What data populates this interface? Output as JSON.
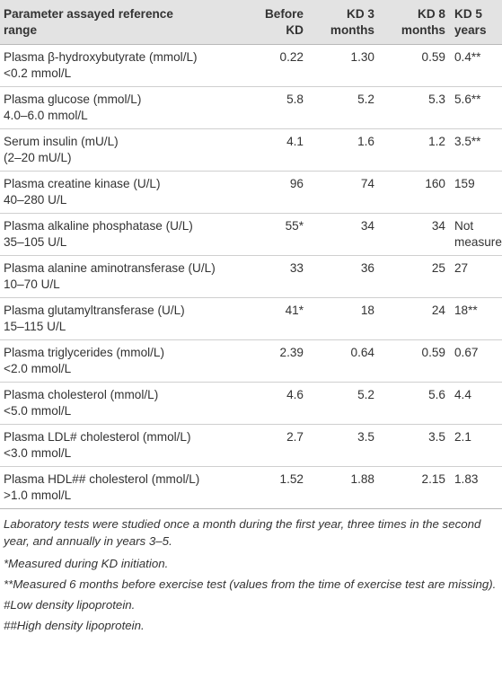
{
  "columns": [
    "Parameter assayed reference range",
    "Before KD",
    "KD 3 months",
    "KD 8 months",
    "KD 5 years"
  ],
  "header": {
    "param": [
      "Parameter assayed reference",
      "range"
    ],
    "before": [
      "Before",
      "KD"
    ],
    "kd3": [
      "KD 3",
      "months"
    ],
    "kd8": [
      "KD 8",
      "months"
    ],
    "kd5": [
      "KD 5",
      "years"
    ]
  },
  "rows": [
    {
      "name": "Plasma β-hydroxybutyrate (mmol/L)",
      "range": "<0.2 mmol/L",
      "before": "0.22",
      "kd3": "1.30",
      "kd8": "0.59",
      "kd5": "0.4**"
    },
    {
      "name": "Plasma glucose (mmol/L)",
      "range": "4.0–6.0 mmol/L",
      "before": "5.8",
      "kd3": "5.2",
      "kd8": "5.3",
      "kd5": "5.6**"
    },
    {
      "name": "Serum insulin (mU/L)",
      "range": "(2–20 mU/L)",
      "before": "4.1",
      "kd3": "1.6",
      "kd8": "1.2",
      "kd5": "3.5**"
    },
    {
      "name": "Plasma creatine kinase (U/L)",
      "range": "40–280 U/L",
      "before": "96",
      "kd3": "74",
      "kd8": "160",
      "kd5": "159"
    },
    {
      "name": "Plasma alkaline phosphatase (U/L)",
      "range": "35–105 U/L",
      "before": "55*",
      "kd3": "34",
      "kd8": "34",
      "kd5": "Not measured"
    },
    {
      "name": "Plasma alanine aminotransferase (U/L)",
      "range": "10–70 U/L",
      "before": "33",
      "kd3": "36",
      "kd8": "25",
      "kd5": "27"
    },
    {
      "name": "Plasma glutamyltransferase (U/L)",
      "range": "15–115 U/L",
      "before": "41*",
      "kd3": "18",
      "kd8": "24",
      "kd5": "18**"
    },
    {
      "name": "Plasma triglycerides (mmol/L)",
      "range": "<2.0 mmol/L",
      "before": "2.39",
      "kd3": "0.64",
      "kd8": "0.59",
      "kd5": "0.67"
    },
    {
      "name": "Plasma cholesterol (mmol/L)",
      "range": "<5.0 mmol/L",
      "before": "4.6",
      "kd3": "5.2",
      "kd8": "5.6",
      "kd5": "4.4"
    },
    {
      "name": "Plasma LDL# cholesterol (mmol/L)",
      "range": "<3.0 mmol/L",
      "before": "2.7",
      "kd3": "3.5",
      "kd8": "3.5",
      "kd5": "2.1"
    },
    {
      "name": "Plasma HDL## cholesterol (mmol/L)",
      "range": ">1.0 mmol/L",
      "before": "1.52",
      "kd3": "1.88",
      "kd8": "2.15",
      "kd5": "1.83"
    }
  ],
  "notes": {
    "lab": "Laboratory tests were studied once a month during the first year, three times in the second year, and annually in years 3–5.",
    "star": "*Measured during KD initiation.",
    "dstar": "**Measured 6 months before exercise test (values from the time of exercise test are missing).",
    "ldl": "#Low density lipoprotein.",
    "hdl": "##High density lipoprotein."
  }
}
